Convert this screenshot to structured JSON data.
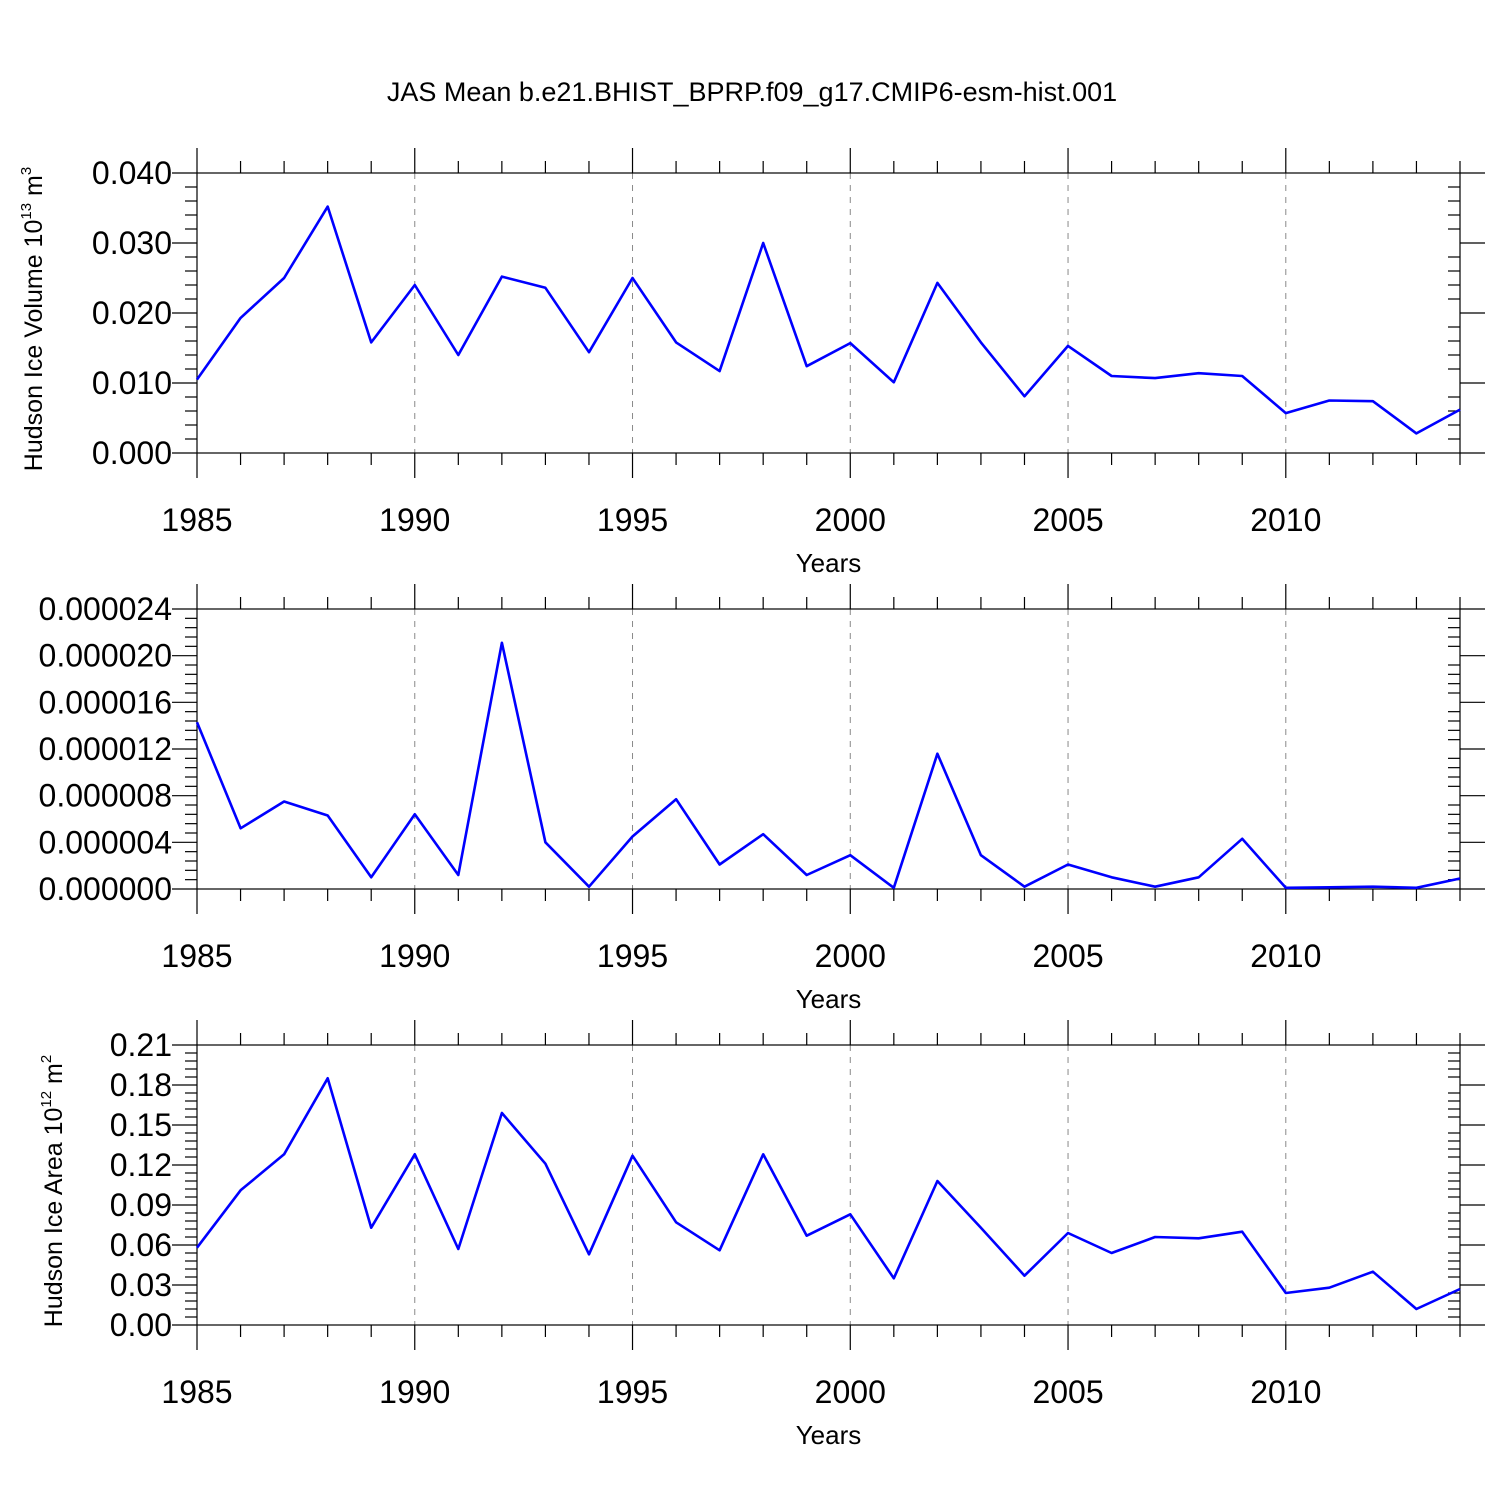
{
  "figure_title": "JAS Mean b.e21.BHIST_BPRP.f09_g17.CMIP6-esm-hist.001",
  "chart_data": [
    {
      "type": "line",
      "title": "",
      "xlabel": "Years",
      "ylabel": "Hudson Ice Volume 10",
      "ylabel_exponent": "13",
      "ylabel_unit": " m",
      "ylabel_unit_exponent": "3",
      "xlim": [
        1985,
        2014
      ],
      "ylim": [
        0.0,
        0.04
      ],
      "x_ticks": [
        "1985",
        "1990",
        "1995",
        "2000",
        "2005",
        "2010"
      ],
      "y_ticks": [
        "0.000",
        "0.010",
        "0.020",
        "0.030",
        "0.040"
      ],
      "grid": "dashed vertical at major x ticks",
      "color": "#0000ff",
      "x": [
        1985,
        1986,
        1987,
        1988,
        1989,
        1990,
        1991,
        1992,
        1993,
        1994,
        1995,
        1996,
        1997,
        1998,
        1999,
        2000,
        2001,
        2002,
        2003,
        2004,
        2005,
        2006,
        2007,
        2008,
        2009,
        2010,
        2011,
        2012,
        2013,
        2014
      ],
      "series": [
        {
          "values": [
            0.0105,
            0.0193,
            0.025,
            0.0352,
            0.0158,
            0.024,
            0.014,
            0.0252,
            0.0236,
            0.0144,
            0.025,
            0.0158,
            0.0117,
            0.03,
            0.0124,
            0.0157,
            0.0101,
            0.0243,
            0.0158,
            0.0081,
            0.0153,
            0.011,
            0.0107,
            0.0114,
            0.011,
            0.0057,
            0.0075,
            0.0074,
            0.0028,
            0.0062
          ]
        }
      ]
    },
    {
      "type": "line",
      "title": "",
      "xlabel": "Years",
      "ylabel": "",
      "xlim": [
        1985,
        2014
      ],
      "ylim": [
        0.0,
        2.4e-05
      ],
      "x_ticks": [
        "1985",
        "1990",
        "1995",
        "2000",
        "2005",
        "2010"
      ],
      "y_ticks": [
        "0.000000",
        "0.000004",
        "0.000008",
        "0.000012",
        "0.000016",
        "0.000020",
        "0.000024"
      ],
      "grid": "dashed vertical at major x ticks",
      "color": "#0000ff",
      "x": [
        1985,
        1986,
        1987,
        1988,
        1989,
        1990,
        1991,
        1992,
        1993,
        1994,
        1995,
        1996,
        1997,
        1998,
        1999,
        2000,
        2001,
        2002,
        2003,
        2004,
        2005,
        2006,
        2007,
        2008,
        2009,
        2010,
        2011,
        2012,
        2013,
        2014
      ],
      "series": [
        {
          "values": [
            1.43e-05,
            5.2e-06,
            7.5e-06,
            6.3e-06,
            1e-06,
            6.4e-06,
            1.2e-06,
            2.11e-05,
            4e-06,
            2e-07,
            4.5e-06,
            7.7e-06,
            2.1e-06,
            4.7e-06,
            1.2e-06,
            2.9e-06,
            1e-07,
            1.16e-05,
            2.9e-06,
            2e-07,
            2.1e-06,
            1e-06,
            2e-07,
            1e-06,
            4.3e-06,
            1e-07,
            1.5e-07,
            2e-07,
            1e-07,
            9e-07
          ]
        }
      ]
    },
    {
      "type": "line",
      "title": "",
      "xlabel": "Years",
      "ylabel": "Hudson Ice Area 10",
      "ylabel_exponent": "12",
      "ylabel_unit": " m",
      "ylabel_unit_exponent": "2",
      "xlim": [
        1985,
        2014
      ],
      "ylim": [
        0.0,
        0.21
      ],
      "x_ticks": [
        "1985",
        "1990",
        "1995",
        "2000",
        "2005",
        "2010"
      ],
      "y_ticks": [
        "0.00",
        "0.03",
        "0.06",
        "0.09",
        "0.12",
        "0.15",
        "0.18",
        "0.21"
      ],
      "grid": "dashed vertical at major x ticks",
      "color": "#0000ff",
      "x": [
        1985,
        1986,
        1987,
        1988,
        1989,
        1990,
        1991,
        1992,
        1993,
        1994,
        1995,
        1996,
        1997,
        1998,
        1999,
        2000,
        2001,
        2002,
        2003,
        2004,
        2005,
        2006,
        2007,
        2008,
        2009,
        2010,
        2011,
        2012,
        2013,
        2014
      ],
      "series": [
        {
          "values": [
            0.058,
            0.101,
            0.128,
            0.185,
            0.073,
            0.128,
            0.057,
            0.159,
            0.121,
            0.053,
            0.127,
            0.077,
            0.056,
            0.128,
            0.067,
            0.083,
            0.035,
            0.108,
            0.073,
            0.037,
            0.069,
            0.054,
            0.066,
            0.065,
            0.07,
            0.024,
            0.028,
            0.04,
            0.012,
            0.027
          ]
        }
      ]
    }
  ]
}
